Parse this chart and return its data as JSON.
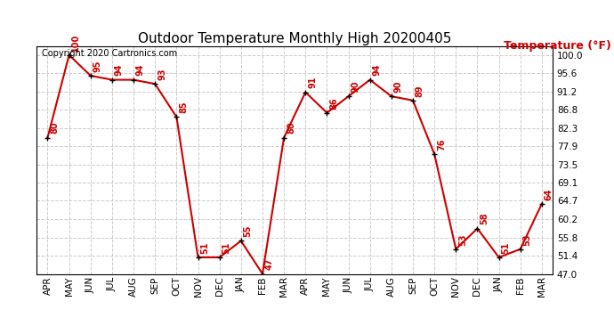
{
  "title": "Outdoor Temperature Monthly High 20200405",
  "ylabel": "Temperature (°F)",
  "copyright_text": "Copyright 2020 Cartronics.com",
  "background_color": "#ffffff",
  "grid_color": "#cccccc",
  "line_color": "#cc0000",
  "label_color": "#cc0000",
  "title_color": "#000000",
  "months": [
    "APR",
    "MAY",
    "JUN",
    "JUL",
    "AUG",
    "SEP",
    "OCT",
    "NOV",
    "DEC",
    "JAN",
    "FEB",
    "MAR",
    "APR",
    "MAY",
    "JUN",
    "JUL",
    "AUG",
    "SEP",
    "OCT",
    "NOV",
    "DEC",
    "JAN",
    "FEB",
    "MAR"
  ],
  "values": [
    80,
    100,
    95,
    94,
    94,
    93,
    85,
    51,
    51,
    55,
    47,
    80,
    91,
    86,
    90,
    94,
    90,
    89,
    76,
    53,
    58,
    51,
    53,
    64
  ],
  "yticks": [
    100.0,
    95.6,
    91.2,
    86.8,
    82.3,
    77.9,
    73.5,
    69.1,
    64.7,
    60.2,
    55.8,
    51.4,
    47.0
  ],
  "ylim": [
    47.0,
    102.0
  ],
  "marker_style": "+",
  "marker_size": 5,
  "line_width": 1.5,
  "font_size_title": 11,
  "font_size_ticks": 7.5,
  "font_size_data": 7,
  "font_size_copyright": 7,
  "font_size_ylabel": 9
}
